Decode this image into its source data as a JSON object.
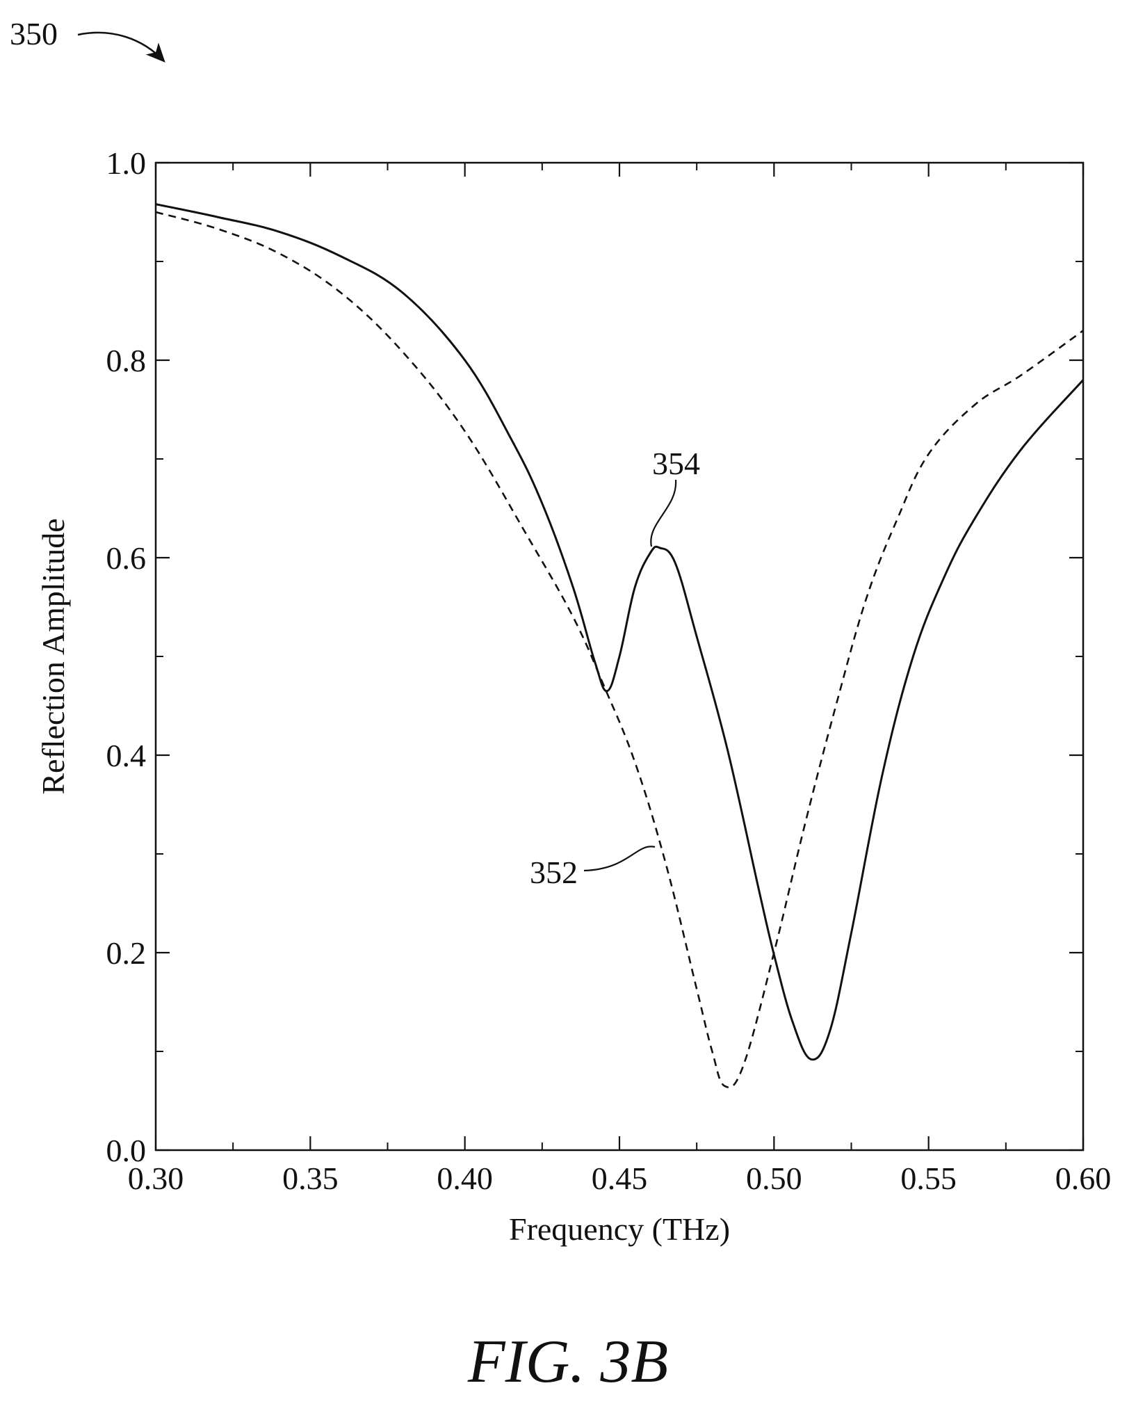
{
  "figure": {
    "reference_label": "350",
    "caption": "FIG. 3B"
  },
  "chart_data": {
    "type": "line",
    "xlabel": "Frequency (THz)",
    "ylabel": "Reflection Amplitude",
    "xlim": [
      0.3,
      0.6
    ],
    "ylim": [
      0.0,
      1.0
    ],
    "x_ticks": [
      "0.30",
      "0.35",
      "0.40",
      "0.45",
      "0.50",
      "0.55",
      "0.60"
    ],
    "y_ticks": [
      "0.0",
      "0.2",
      "0.4",
      "0.6",
      "0.8",
      "1.0"
    ],
    "grid": false,
    "series": [
      {
        "label": "352",
        "style": "dashed",
        "color": "#111111",
        "x": [
          0.3,
          0.32,
          0.34,
          0.36,
          0.38,
          0.4,
          0.42,
          0.435,
          0.445,
          0.455,
          0.465,
          0.475,
          0.48,
          0.484,
          0.49,
          0.5,
          0.51,
          0.52,
          0.53,
          0.54,
          0.55,
          0.565,
          0.58,
          0.6
        ],
        "y": [
          0.95,
          0.933,
          0.908,
          0.868,
          0.808,
          0.728,
          0.623,
          0.54,
          0.47,
          0.393,
          0.29,
          0.163,
          0.1,
          0.065,
          0.085,
          0.2,
          0.33,
          0.45,
          0.56,
          0.64,
          0.705,
          0.755,
          0.785,
          0.83
        ]
      },
      {
        "label": "354",
        "style": "solid",
        "color": "#111111",
        "x": [
          0.3,
          0.32,
          0.34,
          0.36,
          0.38,
          0.4,
          0.415,
          0.425,
          0.435,
          0.442,
          0.446,
          0.45,
          0.455,
          0.46,
          0.463,
          0.468,
          0.475,
          0.485,
          0.495,
          0.5,
          0.506,
          0.512,
          0.518,
          0.525,
          0.535,
          0.545,
          0.555,
          0.565,
          0.58,
          0.6
        ],
        "y": [
          0.958,
          0.945,
          0.93,
          0.905,
          0.868,
          0.8,
          0.72,
          0.655,
          0.57,
          0.495,
          0.465,
          0.5,
          0.57,
          0.605,
          0.61,
          0.595,
          0.52,
          0.405,
          0.265,
          0.198,
          0.13,
          0.092,
          0.12,
          0.22,
          0.38,
          0.5,
          0.58,
          0.64,
          0.71,
          0.78
        ]
      }
    ],
    "annotations": [
      "352",
      "354"
    ]
  }
}
